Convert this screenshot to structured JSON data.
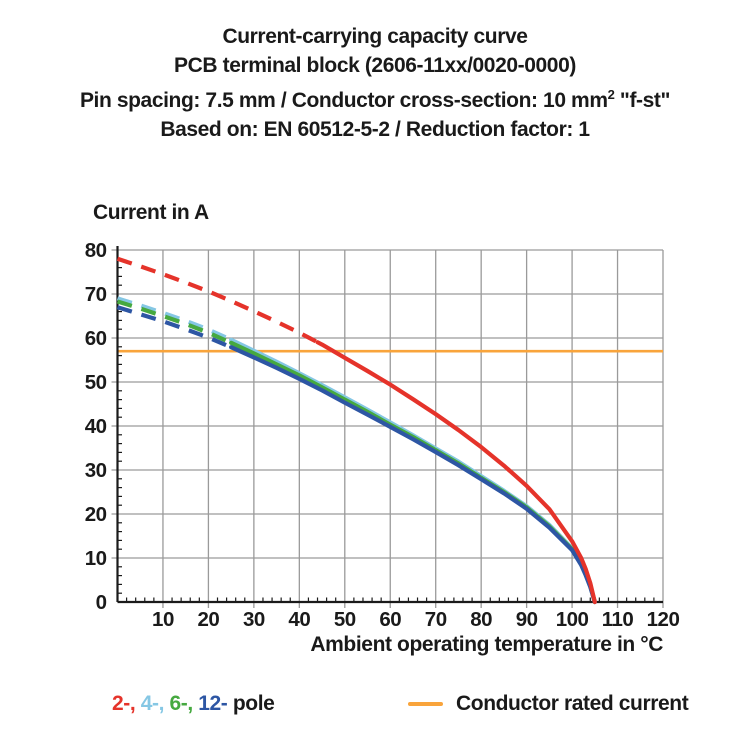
{
  "title": {
    "line1": "Current-carrying capacity curve",
    "line2": "PCB terminal block (2606-11xx/0020-0000)",
    "line3_prefix": "Pin spacing: 7.5 mm / Conductor cross-section: 10 mm",
    "line3_sup": "2",
    "line3_suffix": " \"f-st\"",
    "line4": "Based on: EN 60512-5-2 / Reduction factor: 1"
  },
  "chart_data": {
    "type": "line",
    "title": "Current-carrying capacity curve",
    "ylabel": "Current in A",
    "xlabel": "Ambient operating temperature in °C",
    "xlim": [
      0,
      120
    ],
    "ylim": [
      0,
      80
    ],
    "x_tick_step": 10,
    "y_tick_step": 10,
    "minor_tick_step": 2,
    "grid": true,
    "grid_color": "#9a9a9a",
    "axis_color": "#1a1a1a",
    "x": [
      0,
      5,
      10,
      15,
      20,
      25,
      30,
      35,
      40,
      45,
      50,
      55,
      60,
      65,
      70,
      75,
      80,
      85,
      90,
      95,
      100,
      102,
      103,
      104,
      105
    ],
    "series": [
      {
        "name": "4-pole",
        "color": "#85C7E4",
        "dash_until": 25,
        "values": [
          69,
          67.4,
          65.7,
          63.9,
          61.9,
          59.6,
          57.1,
          54.6,
          52,
          49.3,
          46.5,
          43.7,
          40.8,
          37.9,
          34.9,
          31.9,
          28.6,
          25.3,
          21.8,
          17.5,
          12.2,
          8.8,
          6.5,
          3.8,
          0
        ]
      },
      {
        "name": "6-pole",
        "color": "#46A940",
        "dash_until": 25,
        "values": [
          68.3,
          66.7,
          65,
          63.2,
          61.2,
          58.9,
          56.5,
          54,
          51.5,
          48.8,
          46,
          43.2,
          40.3,
          37.5,
          34.5,
          31.5,
          28.2,
          25,
          21.5,
          17.2,
          12,
          8.6,
          6.3,
          3.6,
          0
        ]
      },
      {
        "name": "12-pole",
        "color": "#2D56A4",
        "dash_until": 25,
        "values": [
          67,
          65.4,
          63.8,
          62,
          60.1,
          57.9,
          55.6,
          53.2,
          50.7,
          48.1,
          45.3,
          42.6,
          39.8,
          37,
          34.1,
          31.1,
          27.9,
          24.7,
          21.2,
          16.9,
          11.8,
          8.4,
          6.1,
          3.4,
          0
        ]
      },
      {
        "name": "2-pole",
        "color": "#E5332A",
        "dash_until": 44,
        "values": [
          78,
          76.3,
          74.5,
          72.6,
          70.6,
          68.4,
          66.1,
          63.7,
          61.2,
          58.5,
          55.5,
          52.5,
          49.4,
          46.1,
          42.7,
          39.1,
          35.2,
          31,
          26.4,
          21.1,
          13.8,
          10,
          7.5,
          4.3,
          0
        ]
      }
    ],
    "reference_line": {
      "label": "Conductor rated current",
      "value": 57,
      "color": "#F9A43B"
    },
    "legend_position": "bottom"
  },
  "legend": {
    "poles": [
      {
        "label": "2-",
        "color": "#E5332A"
      },
      {
        "label": "4-",
        "color": "#85C7E4"
      },
      {
        "label": "6-",
        "color": "#46A940"
      },
      {
        "label": "12-",
        "color": "#2D56A4"
      }
    ],
    "poles_suffix": " pole",
    "rated_label": "Conductor rated current",
    "rated_color": "#F9A43B"
  }
}
